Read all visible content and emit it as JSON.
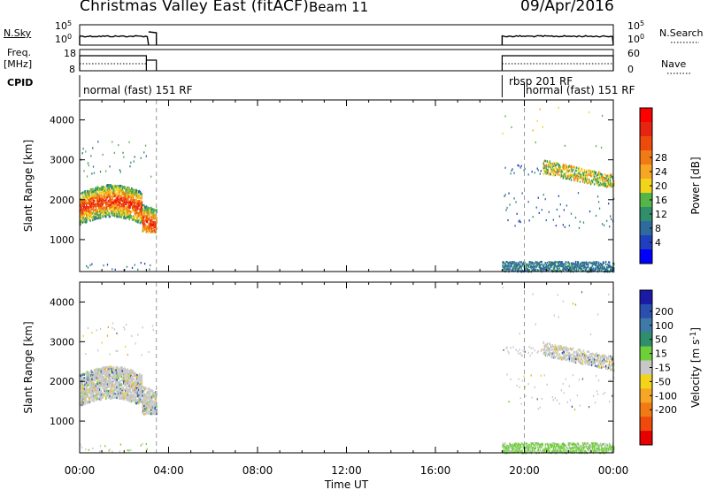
{
  "header": {
    "title": "Christmas Valley East (fitACF)",
    "beam": "Beam 11",
    "date": "09/Apr/2016"
  },
  "left_labels": {
    "nsky": "N.Sky",
    "freq_line1": "Freq.",
    "freq_line2": "[MHz]",
    "cpid": "CPID"
  },
  "right_labels": {
    "nsearch": "N.Search",
    "nave": "Nave"
  },
  "noise_panel": {
    "ticks_left": [
      "10^5",
      "10^0"
    ],
    "ticks_right": [
      "10^5",
      "10^0"
    ]
  },
  "freq_panel": {
    "ticks_left": [
      "18",
      "8"
    ],
    "ticks_right": [
      "60",
      "0"
    ]
  },
  "cpid_panel": {
    "labels": [
      "normal (fast) 151 RF",
      "rbsp 201 RF",
      "normal (fast) 151 RF"
    ]
  },
  "chart_data": [
    {
      "type": "heatmap",
      "name": "power",
      "ylabel": "Slant Range [km]",
      "yticks": [
        1000,
        2000,
        3000,
        4000
      ],
      "ylim": [
        200,
        4500
      ],
      "xlim_hours": [
        0,
        24
      ],
      "colorbar": {
        "label": "Power [dB]",
        "ticks": [
          4,
          8,
          12,
          16,
          20,
          24,
          28
        ],
        "colors": [
          "#0000ff",
          "#1f3fbf",
          "#2e6a9e",
          "#2f8f6b",
          "#55b548",
          "#f2d51a",
          "#f6a623",
          "#f27a14",
          "#ee4a0c",
          "#e62410",
          "#ff0000"
        ]
      }
    },
    {
      "type": "heatmap",
      "name": "velocity",
      "ylabel": "Slant Range [km]",
      "yticks": [
        1000,
        2000,
        3000,
        4000
      ],
      "ylim": [
        200,
        4500
      ],
      "xlim_hours": [
        0,
        24
      ],
      "colorbar": {
        "label": "Velocity [m s^-1]",
        "ticks": [
          200,
          100,
          50,
          15,
          -15,
          -50,
          -100,
          -200
        ],
        "colors": [
          "#1a1aa6",
          "#2a4fb0",
          "#3e7aa8",
          "#2f8f6b",
          "#6fcf3a",
          "#c8c8c8",
          "#f2d51a",
          "#f6a623",
          "#f27a14",
          "#ee4a0c",
          "#e60000"
        ]
      }
    }
  ],
  "xaxis": {
    "ticks": [
      "00:00",
      "04:00",
      "08:00",
      "12:00",
      "16:00",
      "20:00",
      "00:00"
    ],
    "label": "Time UT"
  }
}
